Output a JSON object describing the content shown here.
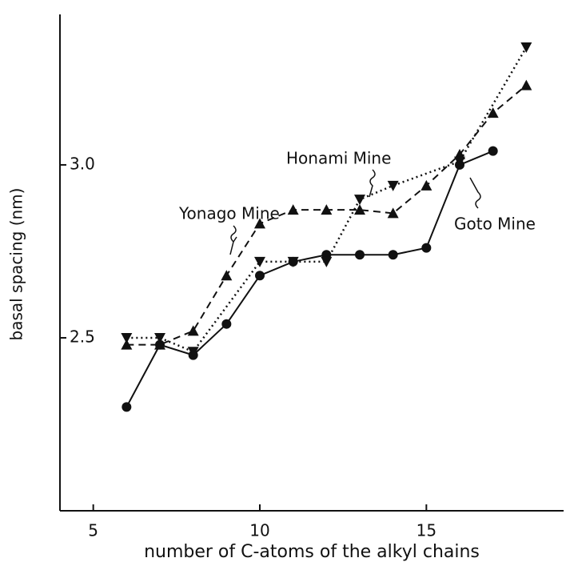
{
  "chart_data": {
    "type": "line",
    "xlabel": "number of C-atoms of the alkyl chains",
    "ylabel": "basal spacing (nm)",
    "xlim": [
      4,
      19
    ],
    "xticks": [
      5,
      10,
      15
    ],
    "ylim": [
      2.0,
      3.435
    ],
    "yticks": [
      2.5,
      {
        "value": 3.0,
        "label": "3.0"
      }
    ],
    "series": [
      {
        "name": "Goto Mine",
        "color": "#111111",
        "marker": "circle",
        "dash": "solid",
        "x": [
          6,
          7,
          8,
          9,
          10,
          11,
          12,
          13,
          14,
          15,
          16,
          17
        ],
        "values": [
          2.3,
          2.48,
          2.45,
          2.54,
          2.68,
          2.72,
          2.74,
          2.74,
          2.74,
          2.76,
          3.0,
          3.04
        ]
      },
      {
        "name": "Yonago Mine",
        "color": "#111111",
        "marker": "triangle-up",
        "dash": "dashed",
        "x": [
          6,
          7,
          8,
          9,
          10,
          11,
          12,
          13,
          14,
          15,
          16,
          17,
          18
        ],
        "values": [
          2.48,
          2.48,
          2.52,
          2.68,
          2.83,
          2.87,
          2.87,
          2.87,
          2.86,
          2.94,
          3.03,
          3.15,
          3.23
        ]
      },
      {
        "name": "Honami Mine",
        "color": "#111111",
        "marker": "triangle-down",
        "dash": "dotted",
        "x": [
          6,
          7,
          8,
          10,
          11,
          12,
          13,
          14,
          16,
          18
        ],
        "values": [
          2.5,
          2.5,
          2.46,
          2.72,
          2.72,
          2.72,
          2.9,
          2.94,
          3.01,
          3.34
        ]
      }
    ]
  }
}
